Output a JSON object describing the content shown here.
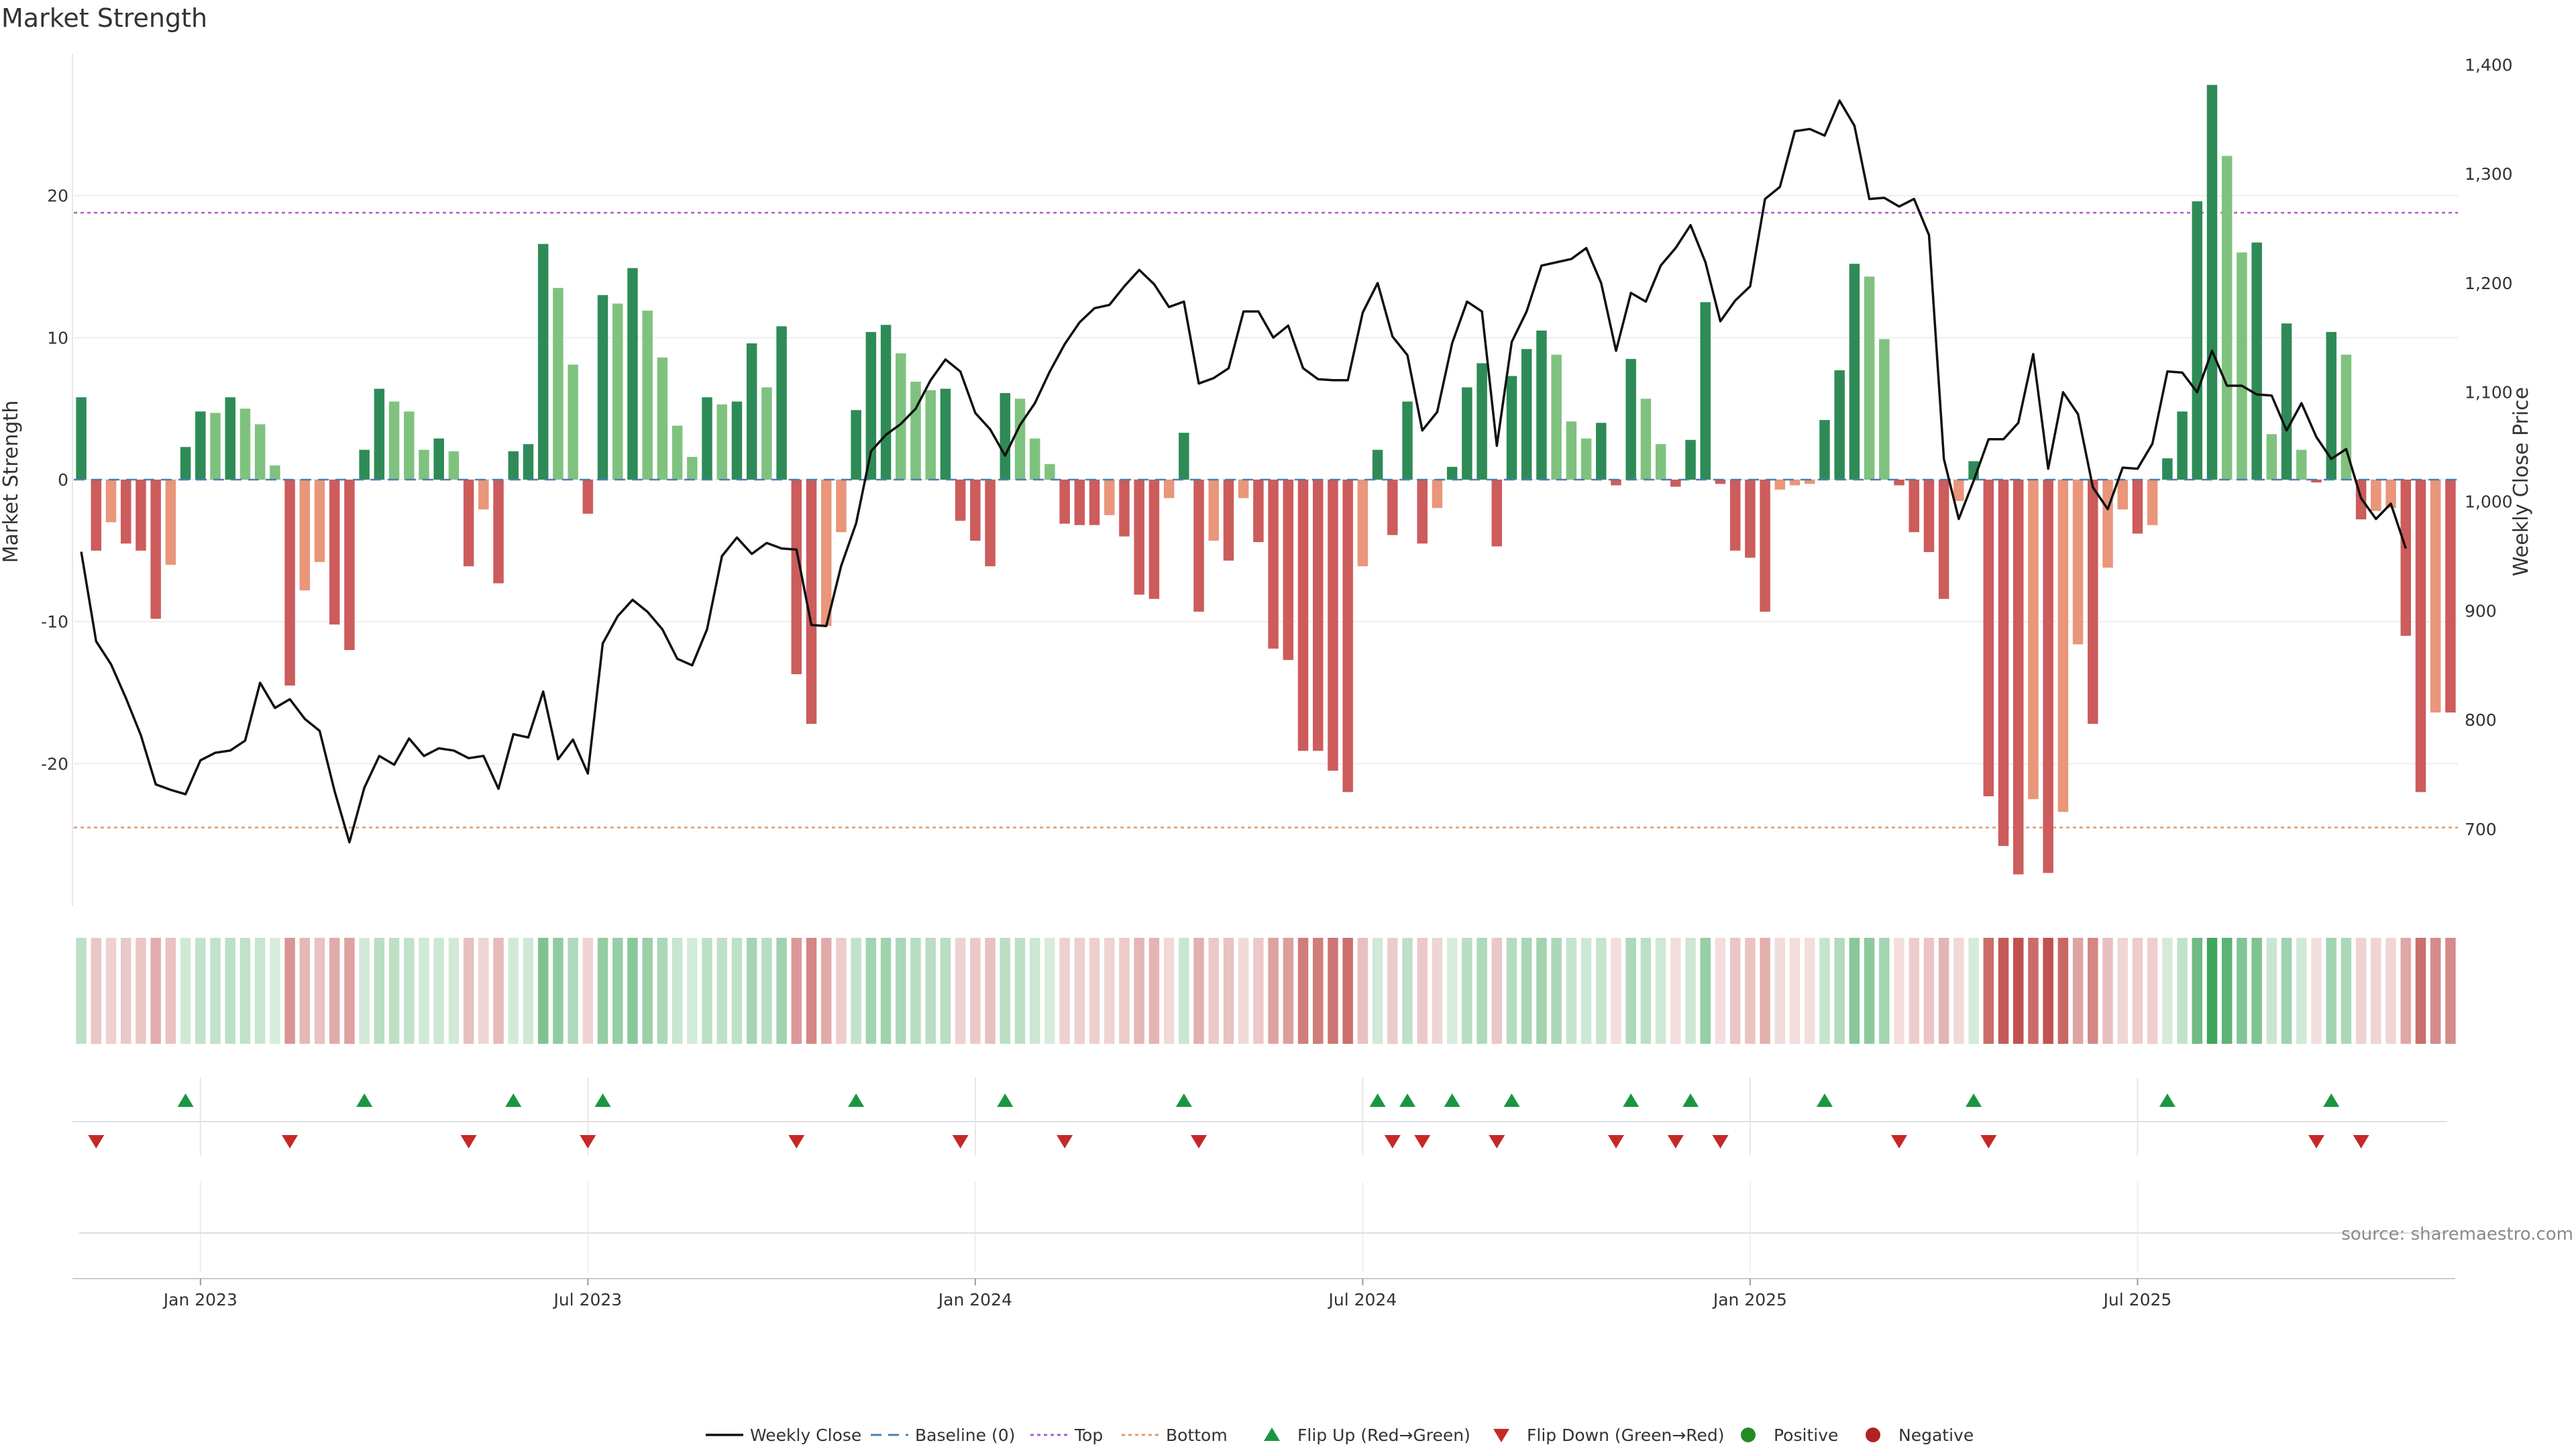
{
  "chart_data": {
    "type": "bar",
    "title": "Market Strength",
    "source": "source: sharemaestro.com",
    "ylabel_left": "Market Strength",
    "ylabel_right": "Weekly Close Price",
    "ylim_left": [
      -30,
      30
    ],
    "yticks_left": [
      20,
      10,
      0,
      -10,
      -20
    ],
    "ylim_right": [
      630,
      1410
    ],
    "yticks_right": [
      1400,
      1300,
      1200,
      1100,
      1000,
      900,
      800,
      700
    ],
    "xticks": [
      {
        "label": "Jan 2023",
        "week": 8
      },
      {
        "label": "Jul 2023",
        "week": 34
      },
      {
        "label": "Jan 2024",
        "week": 60
      },
      {
        "label": "Jul 2024",
        "week": 86
      },
      {
        "label": "Jan 2025",
        "week": 112
      },
      {
        "label": "Jul 2025",
        "week": 138
      }
    ],
    "thresholds": {
      "top": 18.8,
      "bottom": -24.5,
      "baseline": 0
    },
    "strength": [
      5.8,
      -5,
      -3,
      -4.5,
      -5,
      -9.8,
      -6,
      2.3,
      4.8,
      4.7,
      5.8,
      5,
      3.9,
      1,
      -14.5,
      -7.8,
      -5.8,
      -10.2,
      -12,
      2.1,
      6.4,
      5.5,
      4.8,
      2.1,
      2.9,
      2,
      -6.1,
      -2.1,
      -7.3,
      2,
      2.5,
      16.6,
      13.5,
      8.1,
      -2.4,
      13,
      12.4,
      14.9,
      11.9,
      8.6,
      3.8,
      1.6,
      5.8,
      5.3,
      5.5,
      9.6,
      6.5,
      10.8,
      -13.7,
      -17.2,
      -10.3,
      -3.7,
      4.9,
      10.4,
      10.9,
      8.9,
      6.9,
      6.3,
      6.4,
      -2.9,
      -4.3,
      -6.1,
      6.1,
      5.7,
      2.9,
      1.1,
      -3.1,
      -3.2,
      -3.2,
      -2.5,
      -4,
      -8.1,
      -8.4,
      -1.3,
      3.3,
      -9.3,
      -4.3,
      -5.7,
      -1.3,
      -4.4,
      -11.9,
      -12.7,
      -19.1,
      -19.1,
      -20.5,
      -22,
      -6.1,
      2.1,
      -3.9,
      5.5,
      -4.5,
      -2,
      0.9,
      6.5,
      8.2,
      -4.7,
      7.3,
      9.2,
      10.5,
      8.8,
      4.1,
      2.9,
      4,
      -0.4,
      8.5,
      5.7,
      2.5,
      -0.5,
      2.8,
      12.5,
      -0.3,
      -5,
      -5.5,
      -9.3,
      -0.7,
      -0.4,
      -0.3,
      4.2,
      7.7,
      15.2,
      14.3,
      9.9,
      -0.4,
      -3.7,
      -5.1,
      -8.4,
      -1.5,
      1.3,
      -22.3,
      -25.8,
      -27.8,
      -22.5,
      -27.7,
      -23.4,
      -11.6,
      -17.2,
      -6.2,
      -2.1,
      -3.8,
      -3.2,
      1.5,
      4.8,
      19.6,
      27.8,
      22.8,
      16,
      16.7,
      3.2,
      11,
      2.1,
      -0.2,
      10.4,
      8.8,
      -2.8,
      -2.2,
      -2,
      -11,
      -22,
      -16.4,
      -16.4
    ],
    "close": [
      954,
      872,
      851,
      820,
      786,
      741,
      736,
      732,
      763,
      770,
      772,
      781,
      834,
      811,
      819,
      801,
      790,
      735,
      688,
      738,
      767,
      759,
      783,
      767,
      774,
      772,
      765,
      767,
      737,
      787,
      784,
      826,
      764,
      782,
      751,
      870,
      895,
      910,
      899,
      883,
      856,
      850,
      883,
      950,
      967,
      952,
      962,
      957,
      956,
      887,
      886,
      941,
      980,
      1046,
      1061,
      1071,
      1085,
      1111,
      1130,
      1119,
      1081,
      1066,
      1042,
      1070,
      1090,
      1119,
      1144,
      1164,
      1177,
      1180,
      1197,
      1212,
      1199,
      1178,
      1183,
      1108,
      1113,
      1122,
      1174,
      1174,
      1150,
      1161,
      1122,
      1112,
      1111,
      1111,
      1173,
      1200,
      1151,
      1134,
      1065,
      1082,
      1145,
      1183,
      1174,
      1051,
      1146,
      1174,
      1216,
      1219,
      1222,
      1232,
      1200,
      1138,
      1191,
      1183,
      1216,
      1232,
      1253,
      1219,
      1165,
      1184,
      1197,
      1277,
      1288,
      1339,
      1341,
      1335,
      1367,
      1344,
      1277,
      1278,
      1270,
      1277,
      1244,
      1039,
      984,
      1019,
      1057,
      1057,
      1072,
      1135,
      1030,
      1100,
      1080,
      1013,
      993,
      1031,
      1030,
      1053,
      1119,
      1118,
      1100,
      1138,
      1106,
      1106,
      1098,
      1097,
      1065,
      1090,
      1059,
      1039,
      1048,
      1003,
      984,
      998,
      957
    ]
  },
  "legend": [
    {
      "name": "Weekly Close",
      "kind": "line",
      "color": "#111111"
    },
    {
      "name": "Baseline (0)",
      "kind": "dashed",
      "color": "#4a7fb5"
    },
    {
      "name": "Top",
      "kind": "dotted",
      "color": "#b05cc8"
    },
    {
      "name": "Bottom",
      "kind": "dotted",
      "color": "#e39b6a"
    },
    {
      "name": "Flip Up (Red→Green)",
      "kind": "tri-up",
      "color": "#1a9641"
    },
    {
      "name": "Flip Down (Green→Red)",
      "kind": "tri-down",
      "color": "#c62828"
    },
    {
      "name": "Positive",
      "kind": "dot",
      "color": "#228b22"
    },
    {
      "name": "Negative",
      "kind": "dot",
      "color": "#b22222"
    }
  ],
  "colors": {
    "pos_strong": "#2e8b57",
    "pos_light": "#7fc27f",
    "neg_strong": "#cd5c5c",
    "neg_light": "#e9967a",
    "price_line": "#111111"
  }
}
